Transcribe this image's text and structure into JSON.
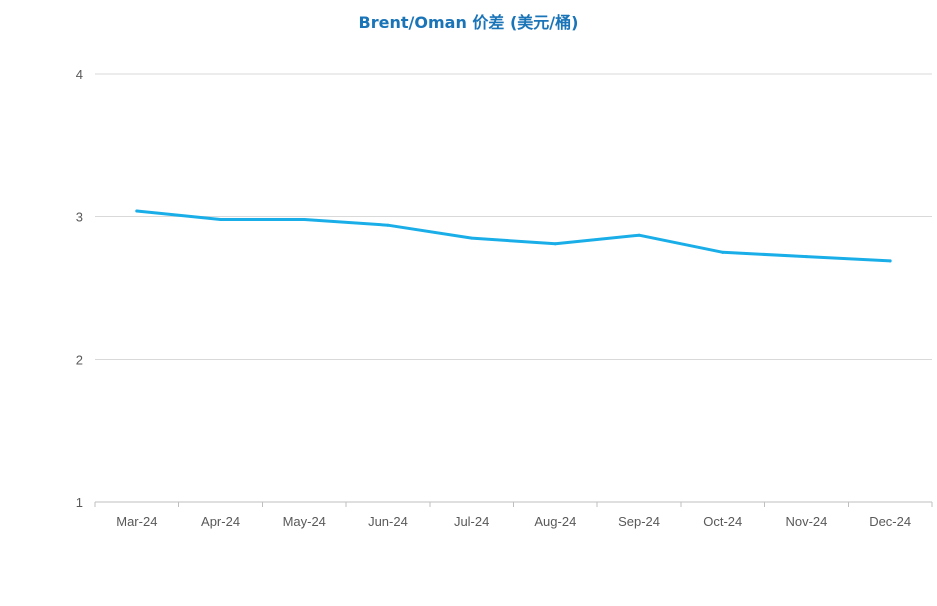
{
  "chart_data": {
    "type": "line",
    "title": "Brent/Oman 价差 (美元/桶)",
    "xlabel": "",
    "ylabel": "",
    "categories": [
      "Mar-24",
      "Apr-24",
      "May-24",
      "Jun-24",
      "Jul-24",
      "Aug-24",
      "Sep-24",
      "Oct-24",
      "Nov-24",
      "Dec-24"
    ],
    "series": [
      {
        "values": [
          3.04,
          2.98,
          2.98,
          2.94,
          2.85,
          2.81,
          2.87,
          2.75,
          2.72,
          2.69
        ]
      }
    ],
    "ylim": [
      1,
      4
    ],
    "yticks": [
      "1",
      "2",
      "3",
      "4"
    ],
    "grid": true,
    "legend": "none",
    "colors": {
      "line": "#1aaee8",
      "title": "#1a74b8",
      "grid": "#d9d9d9",
      "axis": "#bfbfbf",
      "tick_text": "#595959"
    }
  }
}
